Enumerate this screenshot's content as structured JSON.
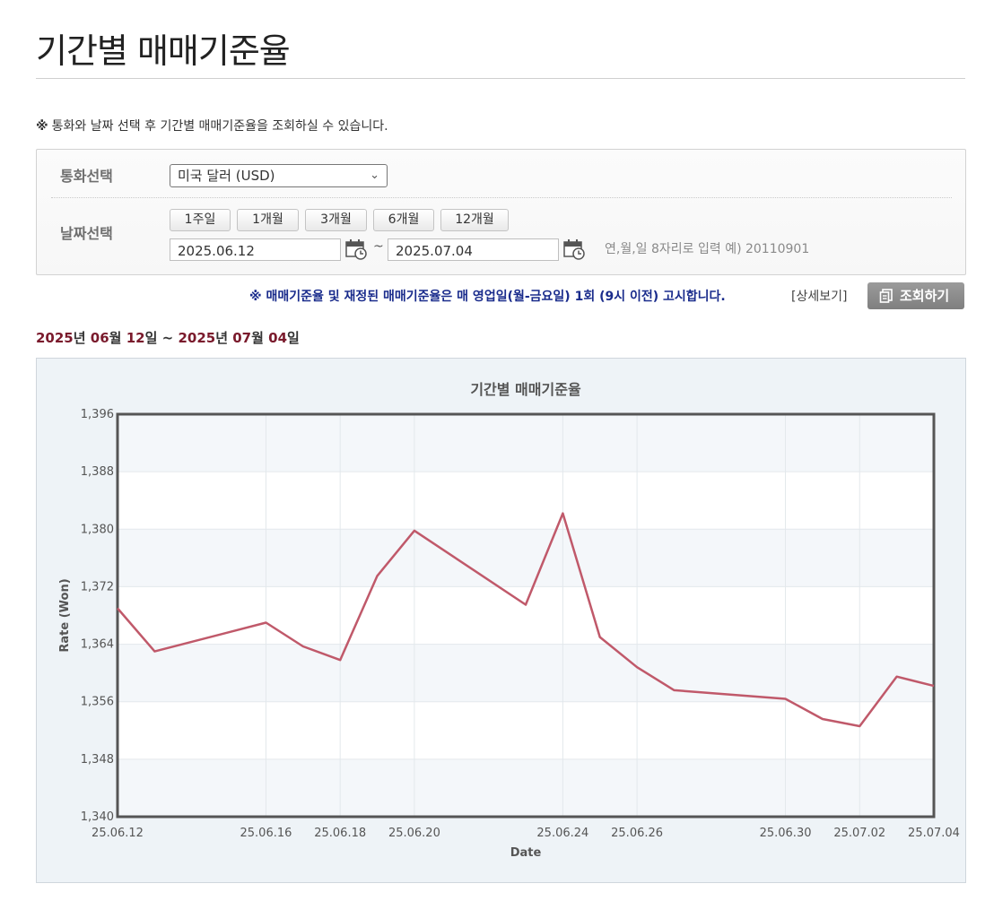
{
  "page": {
    "title": "기간별 매매기준율"
  },
  "notice": {
    "mark": "※",
    "text": "통화와 날짜 선택 후 기간별 매매기준율을 조회하실 수 있습니다."
  },
  "filter": {
    "currency_label": "통화선택",
    "currency_value": "미국 달러 (USD)",
    "date_label": "날짜선택",
    "period_buttons": [
      "1주일",
      "1개월",
      "3개월",
      "6개월",
      "12개월"
    ],
    "start_date": "2025.06.12",
    "end_date": "2025.07.04",
    "tilde": "~",
    "hint": "연,월,일 8자리로 입력 예) 20110901"
  },
  "announcement": {
    "text": "※ 매매기준율 및 재정된 매매기준율은 매 영업일(월-금요일) 1회 (9시 이전) 고시합니다.",
    "detail_link": "[상세보기]",
    "search_button": "조회하기"
  },
  "range": {
    "start_year": "2025",
    "start_month": "06",
    "start_day": "12",
    "end_year": "2025",
    "end_month": "07",
    "end_day": "04",
    "year_unit": "년",
    "month_unit": "월",
    "day_unit": "일",
    "sep": "~"
  },
  "colors": {
    "line": "#c0596a",
    "range_text": "#7a1a2c",
    "announce": "#1a2c8c"
  },
  "chart_data": {
    "type": "line",
    "title": "기간별 매매기준율",
    "xlabel": "Date",
    "ylabel": "Rate (Won)",
    "ylim": [
      1340,
      1396
    ],
    "y_ticks": [
      "1,340",
      "1,348",
      "1,356",
      "1,364",
      "1,372",
      "1,380",
      "1,388",
      "1,396"
    ],
    "x_tick_labels": [
      "25.06.12",
      "25.06.16",
      "25.06.18",
      "25.06.20",
      "25.06.24",
      "25.06.26",
      "25.06.30",
      "25.07.02",
      "25.07.04"
    ],
    "x_tick_dates": [
      "2025-06-12",
      "2025-06-16",
      "2025-06-18",
      "2025-06-20",
      "2025-06-24",
      "2025-06-26",
      "2025-06-30",
      "2025-07-02",
      "2025-07-04"
    ],
    "grid": true,
    "legend": "none",
    "series": [
      {
        "x": [
          "2025-06-12",
          "2025-06-13",
          "2025-06-16",
          "2025-06-17",
          "2025-06-18",
          "2025-06-19",
          "2025-06-20",
          "2025-06-23",
          "2025-06-24",
          "2025-06-25",
          "2025-06-26",
          "2025-06-27",
          "2025-06-30",
          "2025-07-01",
          "2025-07-02",
          "2025-07-03",
          "2025-07-04"
        ],
        "values": [
          1369.0,
          1363.0,
          1367.0,
          1363.7,
          1361.8,
          1373.5,
          1379.8,
          1369.5,
          1382.2,
          1365.0,
          1360.8,
          1357.6,
          1356.4,
          1353.6,
          1352.6,
          1359.5,
          1358.2
        ]
      }
    ]
  }
}
